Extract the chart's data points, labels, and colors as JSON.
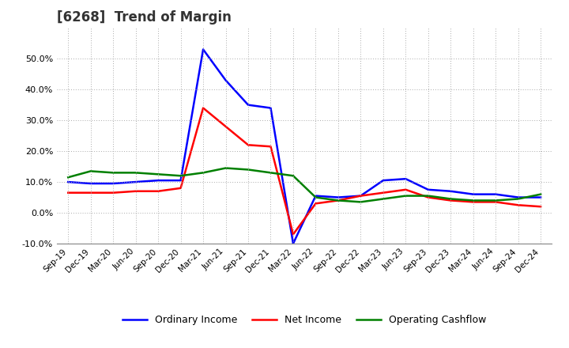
{
  "title": "[6268]  Trend of Margin",
  "x_labels": [
    "Sep-19",
    "Dec-19",
    "Mar-20",
    "Jun-20",
    "Sep-20",
    "Dec-20",
    "Mar-21",
    "Jun-21",
    "Sep-21",
    "Dec-21",
    "Mar-22",
    "Jun-22",
    "Sep-22",
    "Dec-22",
    "Mar-23",
    "Jun-23",
    "Sep-23",
    "Dec-23",
    "Mar-24",
    "Jun-24",
    "Sep-24",
    "Dec-24"
  ],
  "ordinary_income": [
    10.0,
    9.5,
    9.5,
    10.0,
    10.5,
    10.5,
    53.0,
    43.0,
    35.0,
    34.0,
    -10.0,
    5.5,
    5.0,
    5.5,
    10.5,
    11.0,
    7.5,
    7.0,
    6.0,
    6.0,
    5.0,
    5.0
  ],
  "net_income": [
    6.5,
    6.5,
    6.5,
    7.0,
    7.0,
    8.0,
    34.0,
    28.0,
    22.0,
    21.5,
    -7.0,
    3.0,
    4.0,
    5.5,
    6.5,
    7.5,
    5.0,
    4.0,
    3.5,
    3.5,
    2.5,
    2.0
  ],
  "operating_cashflow": [
    11.5,
    13.5,
    13.0,
    13.0,
    12.5,
    12.0,
    13.0,
    14.5,
    14.0,
    13.0,
    12.0,
    5.0,
    4.0,
    3.5,
    4.5,
    5.5,
    5.5,
    4.5,
    4.0,
    4.0,
    4.5,
    6.0
  ],
  "ylim": [
    -10.0,
    60.0
  ],
  "yticks": [
    -10.0,
    0.0,
    10.0,
    20.0,
    30.0,
    40.0,
    50.0
  ],
  "line_colors": {
    "ordinary_income": "#0000ff",
    "net_income": "#ff0000",
    "operating_cashflow": "#008000"
  },
  "line_width": 1.8,
  "background_color": "#ffffff",
  "grid_color": "#aaaaaa",
  "title_color": "#333333",
  "legend_labels": [
    "Ordinary Income",
    "Net Income",
    "Operating Cashflow"
  ]
}
